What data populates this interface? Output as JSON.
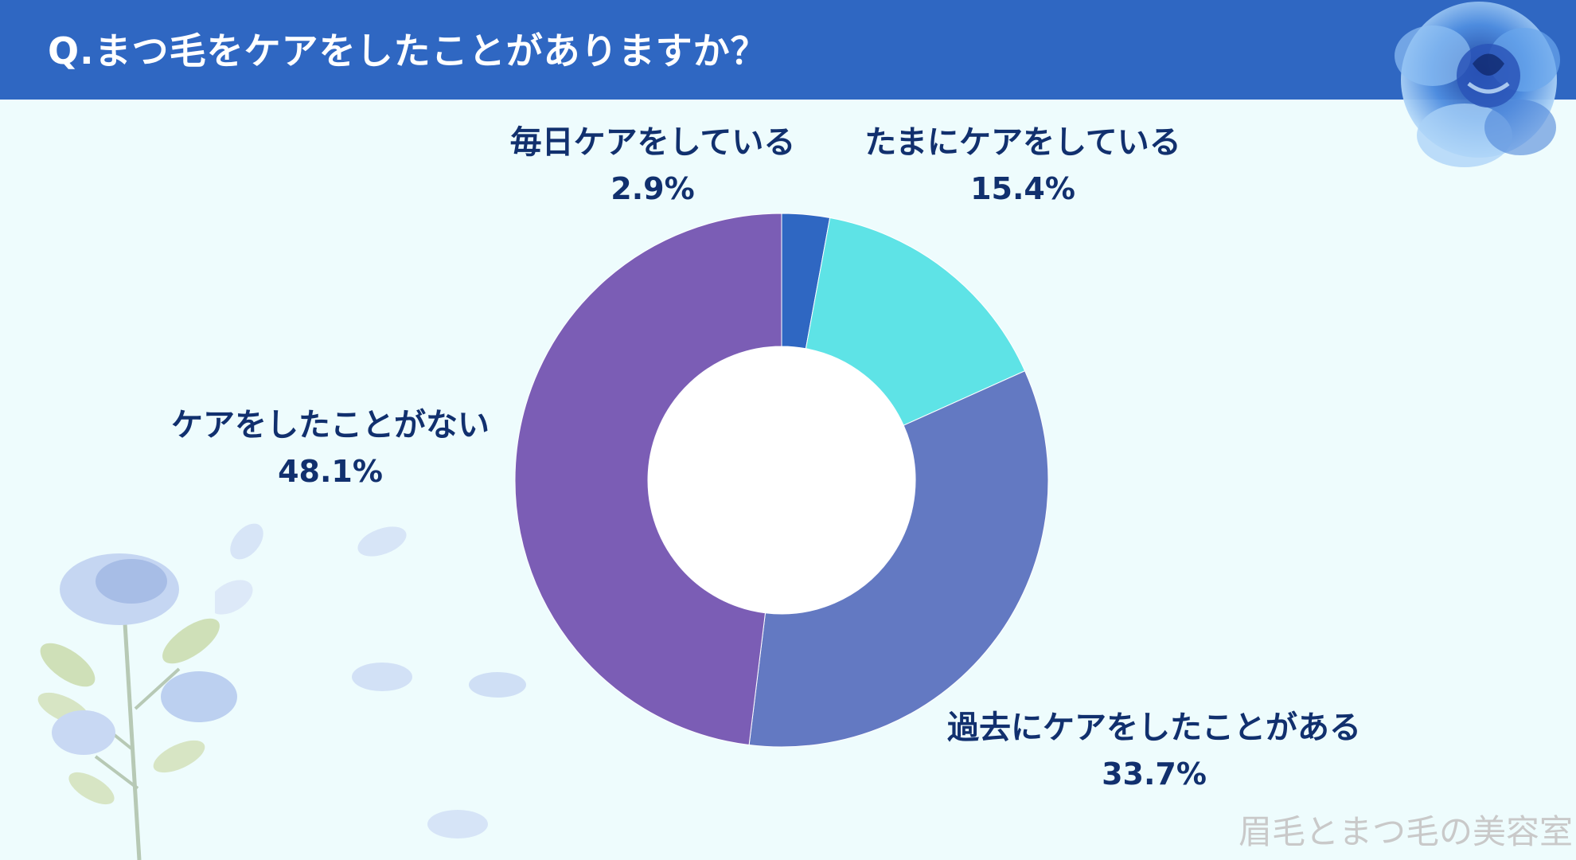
{
  "header": {
    "title": "Q.まつ毛をケアをしたことがありますか？"
  },
  "chart_data": {
    "type": "donut",
    "title": "Q.まつ毛をケアをしたことがありますか？",
    "slices": [
      {
        "label": "毎日ケアをしている",
        "value": 2.9,
        "display": "2.9%",
        "color": "#2f67c2"
      },
      {
        "label": "たまにケアをしている",
        "value": 15.4,
        "display": "15.4%",
        "color": "#5ee3e6"
      },
      {
        "label": "過去にケアをしたことがある",
        "value": 33.7,
        "display": "33.7%",
        "color": "#6379c2"
      },
      {
        "label": "ケアをしたことがない",
        "value": 48.1,
        "display": "48.1%",
        "color": "#7b5db5"
      }
    ],
    "start": "12 o'clock",
    "direction": "clockwise"
  },
  "watermark": "眉毛とまつ毛の美容室",
  "decorations": {
    "top_right": "blue-rose-icon",
    "bottom_left": "rose-stem-icon",
    "petals": "petal-icon"
  }
}
